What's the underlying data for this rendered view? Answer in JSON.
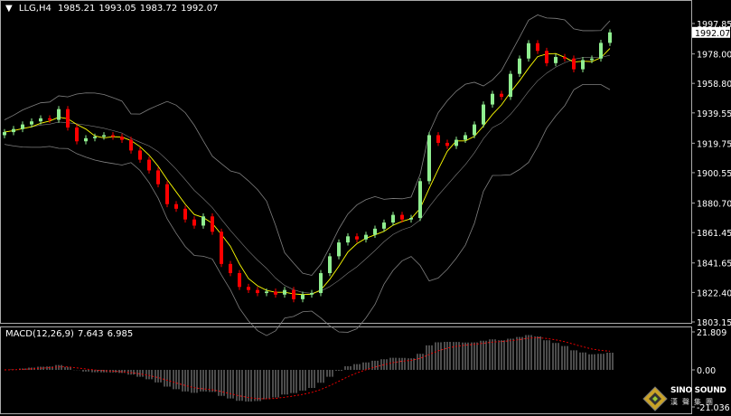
{
  "header": {
    "symbol": "LLG,H4",
    "open": "1985.21",
    "high": "1993.05",
    "low": "1983.72",
    "close": "1992.07"
  },
  "macd_label": {
    "name": "MACD(12,26,9)",
    "macd": "7.643",
    "signal": "6.985"
  },
  "logo": {
    "text": "SINO SOUND",
    "cn": "漢聲集團"
  },
  "colors": {
    "background": "#000000",
    "bull": "#90ee90",
    "bear": "#ff0000",
    "bands": "#808080",
    "ma": "#ffff00",
    "macd_hist": "#c0c0c0",
    "macd_signal": "#ff0000",
    "axis_text": "#ffffff"
  },
  "chart_data": [
    {
      "type": "candlestick",
      "title": "LLG,H4",
      "ylim": [
        1803.15,
        1997.85
      ],
      "yticks": [
        "1997.85",
        "1978.00",
        "1958.80",
        "1939.55",
        "1919.75",
        "1900.55",
        "1880.70",
        "1861.45",
        "1841.65",
        "1822.40",
        "1803.15"
      ],
      "current_price": "1992.07",
      "overlays": [
        "bollinger-bands",
        "moving-average"
      ],
      "first_open": 1925,
      "close": [
        1927,
        1929,
        1932,
        1934,
        1936,
        1935,
        1942,
        1930,
        1921,
        1923,
        1924,
        1925,
        1924,
        1922,
        1915,
        1909,
        1902,
        1893,
        1880,
        1877,
        1870,
        1866,
        1872,
        1862,
        1841,
        1835,
        1826,
        1824,
        1822,
        1823,
        1821,
        1824,
        1818,
        1821,
        1822,
        1835,
        1846,
        1855,
        1859,
        1857,
        1860,
        1864,
        1868,
        1873,
        1870,
        1871,
        1895,
        1925,
        1920,
        1918,
        1922,
        1925,
        1932,
        1945,
        1952,
        1950,
        1965,
        1975,
        1985,
        1980,
        1972,
        1976,
        1975,
        1968,
        1974,
        1975,
        1985.21,
        1992.07
      ]
    },
    {
      "type": "bar",
      "title": "MACD(12,26,9)",
      "ylim": [
        -21.036,
        21.809
      ],
      "yticks": [
        "21.809",
        "0.00",
        "-21.036"
      ],
      "macd": 7.643,
      "signal": 6.985
    }
  ]
}
